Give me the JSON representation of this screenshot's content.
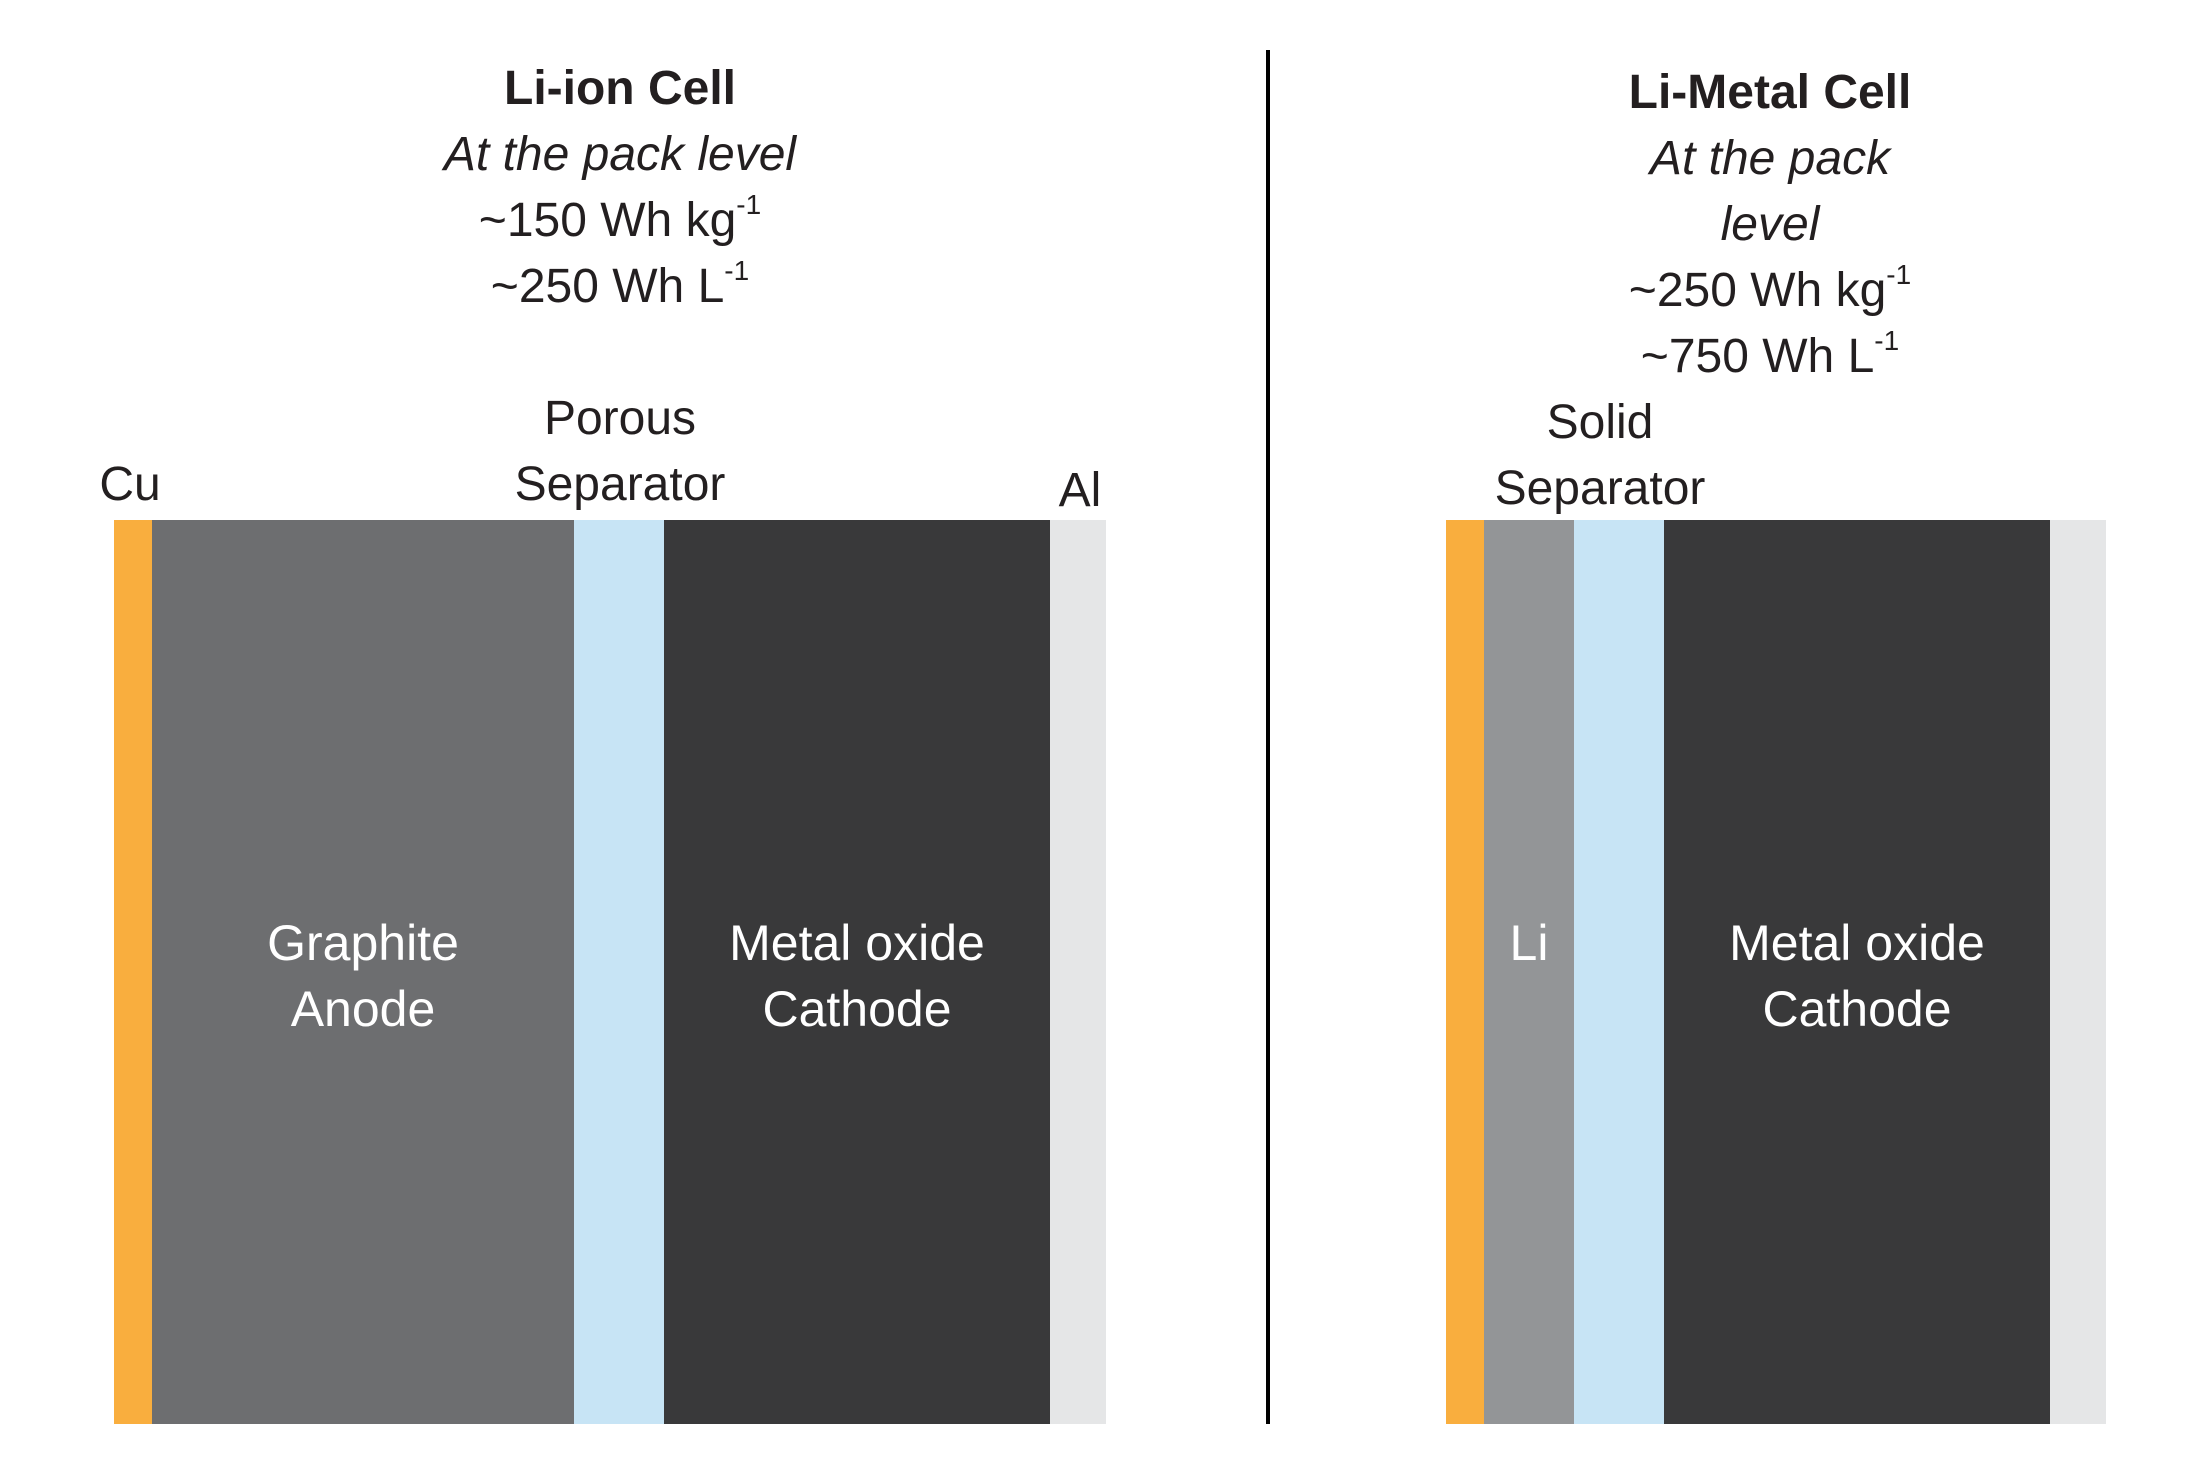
{
  "colors": {
    "copper": "#f9ae3e",
    "graphite": "#6d6e70",
    "separator": "#c7e4f5",
    "cathode": "#39393a",
    "aluminum": "#e5e6e7",
    "lithium": "#939597",
    "divider": "#000000"
  },
  "li_ion": {
    "title": "Li-ion Cell",
    "subtitle": "At the pack level",
    "energy_gravimetric": "~150 Wh kg",
    "energy_gravimetric_exp": "-1",
    "energy_volumetric": "~250 Wh L",
    "energy_volumetric_exp": "-1",
    "labels": {
      "cu": "Cu",
      "separator_line1": "Porous",
      "separator_line2": "Separator",
      "al": "Al",
      "anode_line1": "Graphite",
      "anode_line2": "Anode",
      "cathode_line1": "Metal oxide",
      "cathode_line2": "Cathode"
    }
  },
  "li_metal": {
    "title": "Li-Metal Cell",
    "subtitle": "At the pack level",
    "energy_gravimetric": "~250 Wh kg",
    "energy_gravimetric_exp": "-1",
    "energy_volumetric": "~750 Wh L",
    "energy_volumetric_exp": "-1",
    "labels": {
      "separator_line1": "Solid",
      "separator_line2": "Separator",
      "anode": "Li",
      "cathode_line1": "Metal oxide",
      "cathode_line2": "Cathode"
    }
  }
}
